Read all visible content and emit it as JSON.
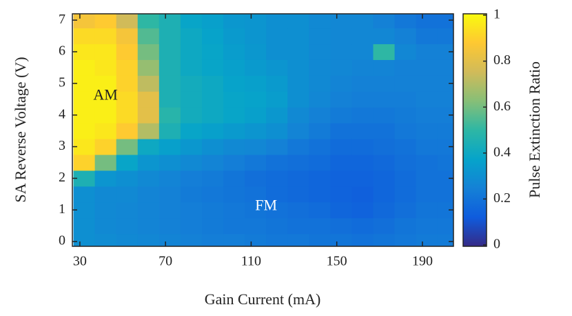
{
  "chart_data": {
    "type": "heatmap",
    "xlabel": "Gain Current (mA)",
    "ylabel": "SA Reverse Voltage (V)",
    "colorbar_label": "Pulse Extinction Ratio",
    "x": [
      32,
      42,
      52,
      62,
      72,
      82,
      92,
      102,
      112,
      122,
      132,
      142,
      152,
      162,
      172,
      182,
      192,
      202
    ],
    "y": [
      0,
      0.5,
      1,
      1.5,
      2,
      2.5,
      3,
      3.5,
      4,
      4.5,
      5,
      5.5,
      6,
      6.5,
      7
    ],
    "z": [
      [
        0.3,
        0.29,
        0.28,
        0.27,
        0.26,
        0.25,
        0.24,
        0.24,
        0.23,
        0.22,
        0.22,
        0.21,
        0.21,
        0.2,
        0.21,
        0.22,
        0.23,
        0.23
      ],
      [
        0.3,
        0.28,
        0.27,
        0.26,
        0.25,
        0.24,
        0.23,
        0.22,
        0.22,
        0.21,
        0.2,
        0.2,
        0.19,
        0.18,
        0.19,
        0.21,
        0.22,
        0.22
      ],
      [
        0.3,
        0.28,
        0.27,
        0.26,
        0.25,
        0.24,
        0.23,
        0.22,
        0.21,
        0.2,
        0.19,
        0.18,
        0.16,
        0.15,
        0.17,
        0.19,
        0.21,
        0.21
      ],
      [
        0.3,
        0.28,
        0.28,
        0.26,
        0.25,
        0.23,
        0.22,
        0.21,
        0.2,
        0.18,
        0.17,
        0.16,
        0.15,
        0.14,
        0.16,
        0.18,
        0.2,
        0.2
      ],
      [
        0.45,
        0.32,
        0.3,
        0.28,
        0.26,
        0.24,
        0.23,
        0.21,
        0.19,
        0.18,
        0.17,
        0.16,
        0.15,
        0.15,
        0.16,
        0.18,
        0.2,
        0.2
      ],
      [
        0.9,
        0.6,
        0.38,
        0.32,
        0.3,
        0.28,
        0.26,
        0.24,
        0.22,
        0.2,
        0.19,
        0.18,
        0.16,
        0.16,
        0.17,
        0.19,
        0.2,
        0.21
      ],
      [
        0.95,
        0.9,
        0.6,
        0.4,
        0.36,
        0.33,
        0.3,
        0.28,
        0.27,
        0.25,
        0.22,
        0.2,
        0.18,
        0.18,
        0.19,
        0.2,
        0.22,
        0.22
      ],
      [
        0.97,
        0.95,
        0.88,
        0.7,
        0.45,
        0.38,
        0.36,
        0.34,
        0.32,
        0.3,
        0.26,
        0.23,
        0.2,
        0.2,
        0.2,
        0.22,
        0.23,
        0.23
      ],
      [
        0.97,
        0.97,
        0.92,
        0.8,
        0.48,
        0.42,
        0.4,
        0.38,
        0.36,
        0.33,
        0.28,
        0.25,
        0.23,
        0.22,
        0.22,
        0.23,
        0.24,
        0.24
      ],
      [
        0.97,
        0.97,
        0.92,
        0.8,
        0.45,
        0.42,
        0.4,
        0.38,
        0.37,
        0.35,
        0.3,
        0.27,
        0.25,
        0.24,
        0.24,
        0.24,
        0.25,
        0.25
      ],
      [
        0.97,
        0.97,
        0.9,
        0.72,
        0.45,
        0.42,
        0.4,
        0.37,
        0.36,
        0.34,
        0.3,
        0.28,
        0.26,
        0.25,
        0.25,
        0.25,
        0.25,
        0.25
      ],
      [
        0.97,
        0.95,
        0.9,
        0.65,
        0.45,
        0.4,
        0.38,
        0.36,
        0.34,
        0.32,
        0.3,
        0.28,
        0.27,
        0.26,
        0.26,
        0.25,
        0.25,
        0.25
      ],
      [
        0.95,
        0.95,
        0.88,
        0.6,
        0.45,
        0.4,
        0.38,
        0.35,
        0.33,
        0.3,
        0.3,
        0.28,
        0.27,
        0.27,
        0.5,
        0.27,
        0.25,
        0.25
      ],
      [
        0.92,
        0.92,
        0.85,
        0.55,
        0.45,
        0.4,
        0.37,
        0.34,
        0.32,
        0.3,
        0.3,
        0.28,
        0.27,
        0.27,
        0.27,
        0.25,
        0.22,
        0.22
      ],
      [
        0.85,
        0.88,
        0.75,
        0.5,
        0.45,
        0.38,
        0.36,
        0.33,
        0.32,
        0.3,
        0.3,
        0.28,
        0.27,
        0.27,
        0.25,
        0.22,
        0.2,
        0.2
      ]
    ],
    "xlim": [
      26.5,
      204.5
    ],
    "ylim": [
      -0.15,
      7.2
    ],
    "xticks": [
      30,
      70,
      110,
      150,
      190
    ],
    "yticks": [
      0,
      1,
      2,
      3,
      4,
      5,
      6,
      7
    ],
    "clim": [
      0,
      1
    ],
    "cticks": [
      0,
      0.2,
      0.4,
      0.6,
      0.8,
      1
    ],
    "colormap": [
      "#352a87",
      "#0f5cdd",
      "#1481d6",
      "#06a4ca",
      "#2eb7a4",
      "#87bf77",
      "#d1bb59",
      "#fec832",
      "#f9fb0e"
    ],
    "annotations": [
      {
        "text": "AM",
        "x": 42,
        "y": 4.6,
        "color": "#222222"
      },
      {
        "text": "FM",
        "x": 117,
        "y": 1.1,
        "color": "#ffffff"
      }
    ]
  }
}
